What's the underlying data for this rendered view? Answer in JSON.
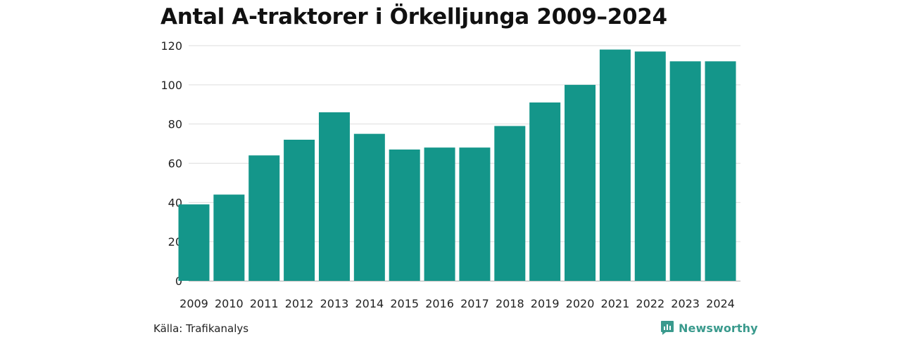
{
  "title": "Antal A-traktorer i Örkelljunga 2009–2024",
  "source": "Källa: Trafikanalys",
  "brand": "Newsworthy",
  "colors": {
    "bar": "#14968a",
    "grid": "#dddddd",
    "brand": "#3a9a8d"
  },
  "chart_data": {
    "type": "bar",
    "categories": [
      "2009",
      "2010",
      "2011",
      "2012",
      "2013",
      "2014",
      "2015",
      "2016",
      "2017",
      "2018",
      "2019",
      "2020",
      "2021",
      "2022",
      "2023",
      "2024"
    ],
    "values": [
      39,
      44,
      64,
      72,
      86,
      75,
      67,
      68,
      68,
      79,
      91,
      100,
      118,
      117,
      112,
      112
    ],
    "ylim": [
      0,
      120
    ],
    "yticks": [
      0,
      20,
      40,
      60,
      80,
      100,
      120
    ],
    "grid": true,
    "legend": "none"
  }
}
